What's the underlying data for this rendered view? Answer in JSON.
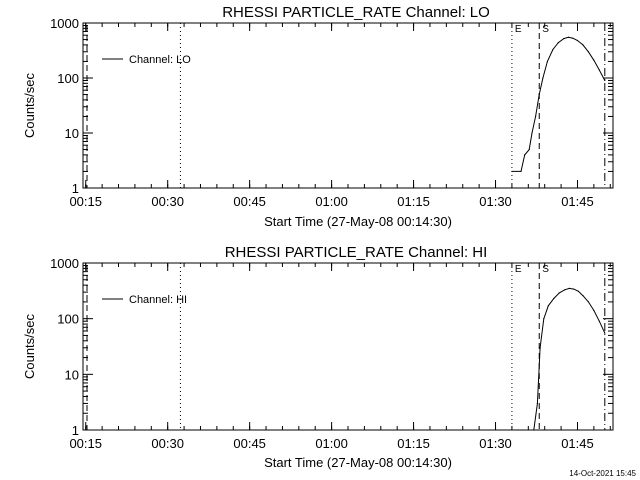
{
  "chart_data": [
    {
      "type": "line",
      "title": "RHESSI PARTICLE_RATE Channel: LO",
      "xlabel": "Start Time (27-May-08 00:14:30)",
      "ylabel": "Counts/sec",
      "yscale": "log",
      "ylim": [
        1,
        1000
      ],
      "xlim": [
        "00:14:30",
        "01:51:30"
      ],
      "ytick_labels": [
        "1",
        "10",
        "100",
        "1000"
      ],
      "xtick_labels": [
        "00:15",
        "00:30",
        "00:45",
        "01:00",
        "01:15",
        "01:30",
        "01:45"
      ],
      "legend": {
        "label": "Channel: LO",
        "position": "top-left"
      },
      "markers": [
        {
          "label": "E",
          "time": "01:33:00",
          "style": "dotted"
        },
        {
          "label": "S",
          "time": "01:38:00",
          "style": "dashed"
        },
        {
          "label": "",
          "time": "01:50:00",
          "style": "dashdot"
        },
        {
          "label": "",
          "time": "00:32:20",
          "style": "dotted"
        }
      ],
      "series": [
        {
          "name": "Channel: LO",
          "x": [
            "01:33:00",
            "01:34:40",
            "01:35:20",
            "01:36:10",
            "01:36:40",
            "01:37:20",
            "01:38:00",
            "01:38:40",
            "01:39:30",
            "01:40:30",
            "01:41:30",
            "01:42:30",
            "01:43:20",
            "01:44:10",
            "01:45:00",
            "01:46:00",
            "01:47:00",
            "01:48:00",
            "01:49:00",
            "01:50:00"
          ],
          "y": [
            2,
            2,
            4,
            5,
            10,
            20,
            50,
            100,
            200,
            330,
            440,
            520,
            550,
            530,
            480,
            400,
            300,
            210,
            140,
            90
          ]
        }
      ]
    },
    {
      "type": "line",
      "title": "RHESSI PARTICLE_RATE Channel: HI",
      "xlabel": "Start Time (27-May-08 00:14:30)",
      "ylabel": "Counts/sec",
      "yscale": "log",
      "ylim": [
        1,
        1000
      ],
      "xlim": [
        "00:14:30",
        "01:51:30"
      ],
      "ytick_labels": [
        "1",
        "10",
        "100",
        "1000"
      ],
      "xtick_labels": [
        "00:15",
        "00:30",
        "00:45",
        "01:00",
        "01:15",
        "01:30",
        "01:45"
      ],
      "legend": {
        "label": "Channel: HI",
        "position": "top-left"
      },
      "markers": [
        {
          "label": "E",
          "time": "01:33:00",
          "style": "dotted"
        },
        {
          "label": "S",
          "time": "01:38:00",
          "style": "dashed"
        },
        {
          "label": "",
          "time": "01:50:00",
          "style": "dashdot"
        },
        {
          "label": "",
          "time": "00:32:20",
          "style": "dotted"
        }
      ],
      "series": [
        {
          "name": "Channel: HI",
          "x": [
            "01:37:00",
            "01:37:40",
            "01:38:10",
            "01:38:50",
            "01:39:40",
            "01:40:40",
            "01:41:40",
            "01:42:40",
            "01:43:30",
            "01:44:20",
            "01:45:10",
            "01:46:00",
            "01:47:00",
            "01:48:00",
            "01:49:00",
            "01:50:00"
          ],
          "y": [
            1,
            3,
            30,
            100,
            170,
            230,
            290,
            330,
            350,
            340,
            310,
            260,
            200,
            140,
            90,
            55
          ]
        }
      ]
    }
  ],
  "timestamp": "14-Oct-2021 15:45"
}
